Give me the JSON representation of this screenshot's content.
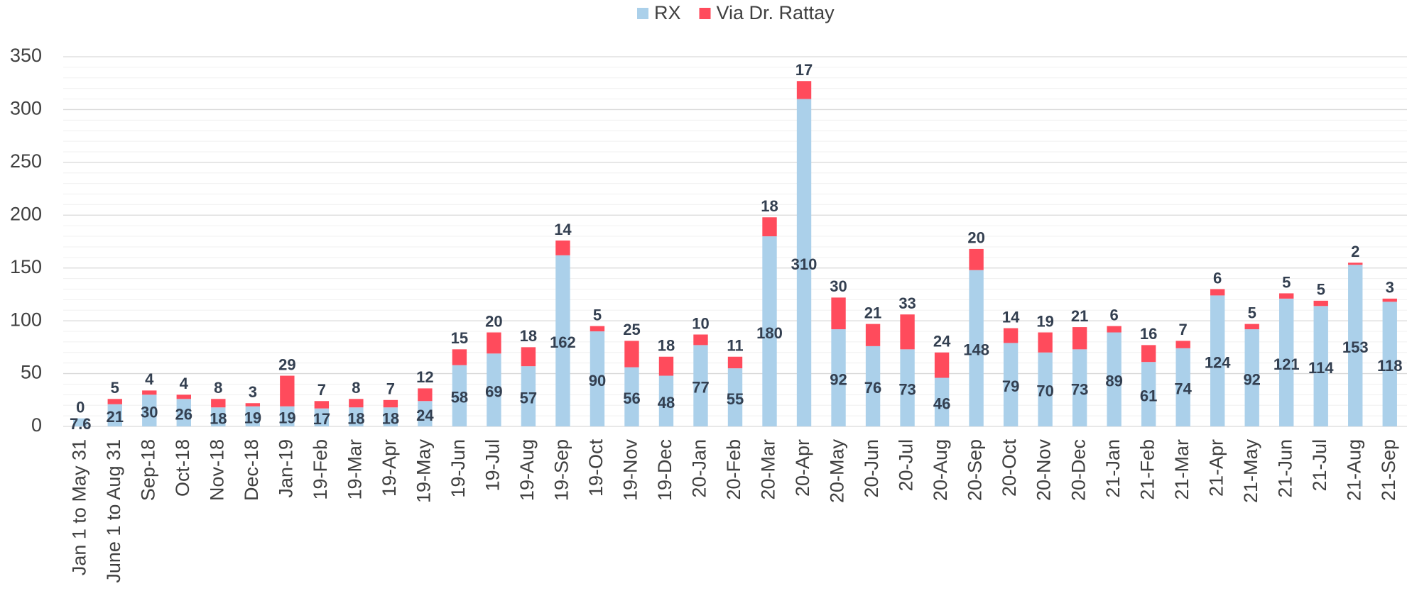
{
  "chart_data": {
    "type": "stacked_bar",
    "categories": [
      "Jan 1 to May 31",
      "June 1 to Aug 31",
      "Sep-18",
      "Oct-18",
      "Nov-18",
      "Dec-18",
      "Jan-19",
      "19-Feb",
      "19-Mar",
      "19-Apr",
      "19-May",
      "19-Jun",
      "19-Jul",
      "19-Aug",
      "19-Sep",
      "19-Oct",
      "19-Nov",
      "19-Dec",
      "20-Jan",
      "20-Feb",
      "20-Mar",
      "20-Apr",
      "20-May",
      "20-Jun",
      "20-Jul",
      "20-Aug",
      "20-Sep",
      "20-Oct",
      "20-Nov",
      "20-Dec",
      "21-Jan",
      "21-Feb",
      "21-Mar",
      "21-Apr",
      "21-May",
      "21-Jun",
      "21-Jul",
      "21-Aug",
      "21-Sep"
    ],
    "series": [
      {
        "name": "RX",
        "color": "#abd0ea",
        "values": [
          7.6,
          21,
          30,
          26,
          18,
          19,
          19,
          17,
          18,
          18,
          24,
          58,
          69,
          57,
          162,
          90,
          56,
          48,
          77,
          55,
          180,
          310,
          92,
          76,
          73,
          46,
          148,
          79,
          70,
          73,
          89,
          61,
          74,
          124,
          92,
          121,
          114,
          153,
          118
        ]
      },
      {
        "name": "Via Dr. Rattay",
        "color": "#ff4b5c",
        "values": [
          0,
          5,
          4,
          4,
          8,
          3,
          29,
          7,
          8,
          7,
          12,
          15,
          20,
          18,
          14,
          5,
          25,
          18,
          10,
          11,
          18,
          17,
          30,
          21,
          33,
          24,
          20,
          14,
          19,
          21,
          6,
          16,
          7,
          6,
          5,
          5,
          5,
          2,
          3
        ]
      }
    ],
    "ylim": [
      0,
      350
    ],
    "yticks": [
      0,
      50,
      100,
      150,
      200,
      250,
      300,
      350
    ],
    "grid": true,
    "legend": "top"
  }
}
